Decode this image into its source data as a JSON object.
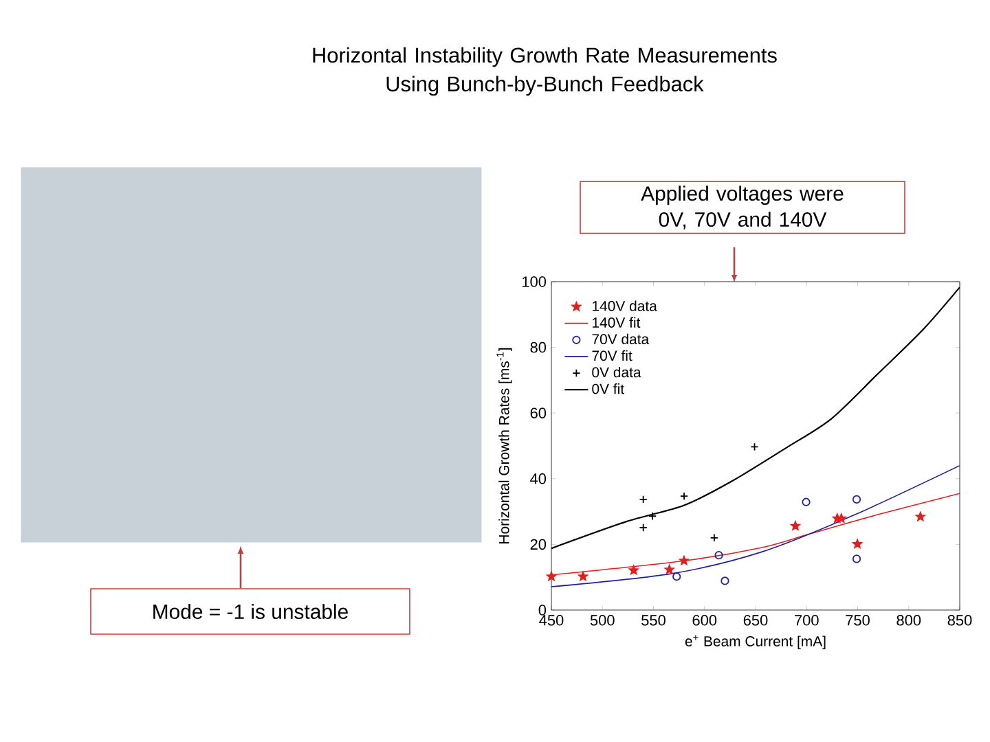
{
  "chart_data": {
    "type": "scatter",
    "title": "Horizontal Instability Growth Rate Measurements Using Bunch-by-Bunch Feedback",
    "xlabel": "e$^{+}$ Beam Current [mA]",
    "ylabel": "Horizontal Growth Rates [ms$^{-1}$]",
    "annotations": [
      "Applied voltages were 0V, 70V and 140V",
      "Mode = -1 is unstable"
    ],
    "xlim": [
      450,
      850
    ],
    "ylim": [
      0,
      100
    ],
    "xticks": [
      450,
      500,
      550,
      600,
      650,
      700,
      750,
      800,
      850
    ],
    "yticks": [
      0,
      20,
      40,
      60,
      80,
      100
    ],
    "legend": "top left",
    "grid": false,
    "series": [
      {
        "name": "140V data",
        "marker": "star",
        "color": "#e02020",
        "x": [
          450,
          481,
          530.6,
          565.6,
          579.9,
          689,
          730,
          734,
          749.7,
          811.5
        ],
        "values": [
          10.2,
          10.2,
          12.1,
          12.3,
          15,
          25.6,
          27.9,
          27.9,
          20.1,
          28.4
        ]
      },
      {
        "name": "140V fit",
        "type": "line",
        "marker": "none",
        "line_style": "solid",
        "color": "#e02020",
        "x": [
          450,
          580,
          657,
          702,
          769,
          850
        ],
        "values": [
          10.7,
          15,
          19.1,
          23.1,
          29,
          35.5
        ]
      },
      {
        "name": "70V data",
        "marker": "circle",
        "color": "#2020a0",
        "x": [
          572.7,
          614,
          620,
          699.5,
          749,
          749
        ],
        "values": [
          10.2,
          16.7,
          8.9,
          32.9,
          33.7,
          15.6
        ]
      },
      {
        "name": "70V fit",
        "type": "line",
        "marker": "none",
        "line_style": "solid",
        "color": "#2020a0",
        "x": [
          450,
          568,
          657,
          747,
          850
        ],
        "values": [
          7.1,
          11.1,
          17.8,
          29,
          44
        ]
      },
      {
        "name": "0V data",
        "marker": "cross",
        "color": "#000000",
        "x": [
          540,
          540,
          549,
          580,
          609.5,
          649
        ],
        "values": [
          33.7,
          25.1,
          28.6,
          34.7,
          22,
          49.7
        ]
      },
      {
        "name": "0V fit",
        "type": "line",
        "marker": "none",
        "line_style": "solid",
        "color": "#000000",
        "x": [
          450,
          523,
          580,
          626,
          680,
          724,
          769,
          814,
          850
        ],
        "values": [
          18.8,
          26.9,
          31.9,
          39.1,
          49.4,
          58.2,
          71.7,
          85.4,
          98.3
        ]
      }
    ]
  }
}
